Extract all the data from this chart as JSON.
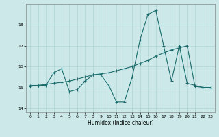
{
  "title": "",
  "xlabel": "Humidex (Indice chaleur)",
  "bg_color": "#cce8e8",
  "line_color": "#1a6b6b",
  "xlim": [
    -0.5,
    23.5
  ],
  "ylim": [
    13.8,
    19.0
  ],
  "yticks": [
    14,
    15,
    16,
    17,
    18
  ],
  "xticks": [
    0,
    1,
    2,
    3,
    4,
    5,
    6,
    7,
    8,
    9,
    10,
    11,
    12,
    13,
    14,
    15,
    16,
    17,
    18,
    19,
    20,
    21,
    22,
    23
  ],
  "series1_x": [
    0,
    1,
    2,
    3,
    4,
    5,
    6,
    7,
    8,
    9,
    10,
    11,
    12,
    13,
    14,
    15,
    16,
    17,
    18,
    19,
    20,
    21,
    22,
    23
  ],
  "series1_y": [
    15.1,
    15.1,
    15.1,
    15.7,
    15.9,
    14.8,
    14.9,
    15.3,
    15.6,
    15.6,
    15.1,
    14.3,
    14.3,
    15.5,
    17.3,
    18.5,
    18.7,
    17.0,
    15.3,
    17.0,
    15.2,
    15.1,
    15.0,
    15.0
  ],
  "series2_x": [
    0,
    1,
    2,
    3,
    4,
    5,
    6,
    7,
    8,
    9,
    10,
    11,
    12,
    13,
    14,
    15,
    16,
    17,
    18,
    19,
    20,
    21,
    22,
    23
  ],
  "series2_y": [
    15.05,
    15.1,
    15.15,
    15.2,
    15.25,
    15.3,
    15.4,
    15.5,
    15.6,
    15.65,
    15.7,
    15.8,
    15.9,
    16.0,
    16.15,
    16.3,
    16.5,
    16.65,
    16.8,
    16.9,
    17.0,
    15.05,
    15.0,
    15.0
  ],
  "grid_color": "#aed4d4",
  "marker": "+"
}
